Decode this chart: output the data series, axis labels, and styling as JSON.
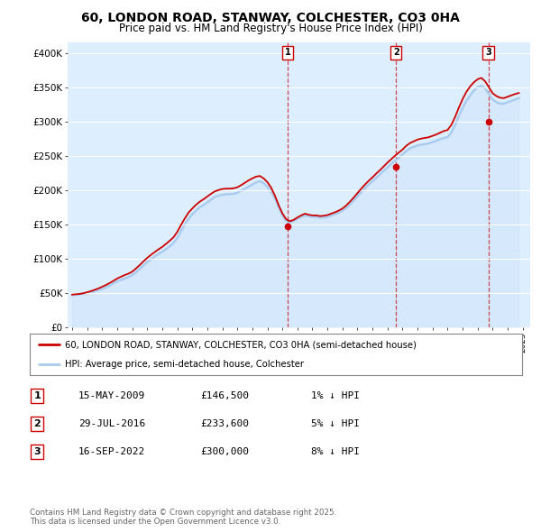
{
  "title": "60, LONDON ROAD, STANWAY, COLCHESTER, CO3 0HA",
  "subtitle": "Price paid vs. HM Land Registry's House Price Index (HPI)",
  "background_color": "#ffffff",
  "plot_background": "#ddeeff",
  "grid_color": "#bbccdd",
  "ylabel_ticks": [
    "£0",
    "£50K",
    "£100K",
    "£150K",
    "£200K",
    "£250K",
    "£300K",
    "£350K",
    "£400K"
  ],
  "ytick_values": [
    0,
    50000,
    100000,
    150000,
    200000,
    250000,
    300000,
    350000,
    400000
  ],
  "ylim": [
    0,
    415000
  ],
  "xlim_start": 1994.7,
  "xlim_end": 2025.5,
  "hpi_color": "#aaccee",
  "price_color": "#cc0000",
  "sale_marker_color": "#cc0000",
  "vline_color": "#cc0000",
  "legend_label_price": "60, LONDON ROAD, STANWAY, COLCHESTER, CO3 0HA (semi-detached house)",
  "legend_label_hpi": "HPI: Average price, semi-detached house, Colchester",
  "sale1_date": 2009.37,
  "sale1_price": 146500,
  "sale1_label": "1",
  "sale2_date": 2016.57,
  "sale2_price": 233600,
  "sale2_label": "2",
  "sale3_date": 2022.71,
  "sale3_price": 300000,
  "sale3_label": "3",
  "table_rows": [
    [
      "1",
      "15-MAY-2009",
      "£146,500",
      "1% ↓ HPI"
    ],
    [
      "2",
      "29-JUL-2016",
      "£233,600",
      "5% ↓ HPI"
    ],
    [
      "3",
      "16-SEP-2022",
      "£300,000",
      "8% ↓ HPI"
    ]
  ],
  "footer_text": "Contains HM Land Registry data © Crown copyright and database right 2025.\nThis data is licensed under the Open Government Licence v3.0.",
  "hpi_data_x": [
    1995.0,
    1995.25,
    1995.5,
    1995.75,
    1996.0,
    1996.25,
    1996.5,
    1996.75,
    1997.0,
    1997.25,
    1997.5,
    1997.75,
    1998.0,
    1998.25,
    1998.5,
    1998.75,
    1999.0,
    1999.25,
    1999.5,
    1999.75,
    2000.0,
    2000.25,
    2000.5,
    2000.75,
    2001.0,
    2001.25,
    2001.5,
    2001.75,
    2002.0,
    2002.25,
    2002.5,
    2002.75,
    2003.0,
    2003.25,
    2003.5,
    2003.75,
    2004.0,
    2004.25,
    2004.5,
    2004.75,
    2005.0,
    2005.25,
    2005.5,
    2005.75,
    2006.0,
    2006.25,
    2006.5,
    2006.75,
    2007.0,
    2007.25,
    2007.5,
    2007.75,
    2008.0,
    2008.25,
    2008.5,
    2008.75,
    2009.0,
    2009.25,
    2009.5,
    2009.75,
    2010.0,
    2010.25,
    2010.5,
    2010.75,
    2011.0,
    2011.25,
    2011.5,
    2011.75,
    2012.0,
    2012.25,
    2012.5,
    2012.75,
    2013.0,
    2013.25,
    2013.5,
    2013.75,
    2014.0,
    2014.25,
    2014.5,
    2014.75,
    2015.0,
    2015.25,
    2015.5,
    2015.75,
    2016.0,
    2016.25,
    2016.5,
    2016.75,
    2017.0,
    2017.25,
    2017.5,
    2017.75,
    2018.0,
    2018.25,
    2018.5,
    2018.75,
    2019.0,
    2019.25,
    2019.5,
    2019.75,
    2020.0,
    2020.25,
    2020.5,
    2020.75,
    2021.0,
    2021.25,
    2021.5,
    2021.75,
    2022.0,
    2022.25,
    2022.5,
    2022.75,
    2023.0,
    2023.25,
    2023.5,
    2023.75,
    2024.0,
    2024.25,
    2024.5,
    2024.75
  ],
  "hpi_data_y": [
    47000,
    47500,
    48000,
    49000,
    50000,
    51000,
    52500,
    54000,
    56000,
    58000,
    61000,
    64000,
    67000,
    69000,
    71000,
    73000,
    76000,
    80000,
    85000,
    90000,
    95000,
    99000,
    103000,
    107000,
    110000,
    114000,
    118000,
    123000,
    130000,
    140000,
    150000,
    158000,
    165000,
    170000,
    175000,
    178000,
    182000,
    186000,
    190000,
    192000,
    193000,
    194000,
    194000,
    194500,
    196000,
    199000,
    202000,
    205000,
    208000,
    211000,
    213000,
    210000,
    205000,
    198000,
    188000,
    175000,
    163000,
    155000,
    153000,
    155000,
    158000,
    161000,
    163000,
    162000,
    161000,
    161000,
    160000,
    160000,
    161000,
    163000,
    165000,
    167000,
    170000,
    174000,
    179000,
    185000,
    191000,
    197000,
    203000,
    208000,
    213000,
    218000,
    223000,
    228000,
    233000,
    238000,
    243000,
    247000,
    252000,
    257000,
    261000,
    263000,
    265000,
    266000,
    267000,
    268000,
    270000,
    272000,
    274000,
    276000,
    277000,
    284000,
    295000,
    308000,
    320000,
    330000,
    338000,
    345000,
    350000,
    352000,
    348000,
    340000,
    332000,
    328000,
    326000,
    326000,
    328000,
    330000,
    332000,
    334000
  ],
  "price_data_x": [
    1995.0,
    1995.25,
    1995.5,
    1995.75,
    1996.0,
    1996.25,
    1996.5,
    1996.75,
    1997.0,
    1997.25,
    1997.5,
    1997.75,
    1998.0,
    1998.25,
    1998.5,
    1998.75,
    1999.0,
    1999.25,
    1999.5,
    1999.75,
    2000.0,
    2000.25,
    2000.5,
    2000.75,
    2001.0,
    2001.25,
    2001.5,
    2001.75,
    2002.0,
    2002.25,
    2002.5,
    2002.75,
    2003.0,
    2003.25,
    2003.5,
    2003.75,
    2004.0,
    2004.25,
    2004.5,
    2004.75,
    2005.0,
    2005.25,
    2005.5,
    2005.75,
    2006.0,
    2006.25,
    2006.5,
    2006.75,
    2007.0,
    2007.25,
    2007.5,
    2007.75,
    2008.0,
    2008.25,
    2008.5,
    2008.75,
    2009.0,
    2009.25,
    2009.5,
    2009.75,
    2010.0,
    2010.25,
    2010.5,
    2010.75,
    2011.0,
    2011.25,
    2011.5,
    2011.75,
    2012.0,
    2012.25,
    2012.5,
    2012.75,
    2013.0,
    2013.25,
    2013.5,
    2013.75,
    2014.0,
    2014.25,
    2014.5,
    2014.75,
    2015.0,
    2015.25,
    2015.5,
    2015.75,
    2016.0,
    2016.25,
    2016.5,
    2016.75,
    2017.0,
    2017.25,
    2017.5,
    2017.75,
    2018.0,
    2018.25,
    2018.5,
    2018.75,
    2019.0,
    2019.25,
    2019.5,
    2019.75,
    2020.0,
    2020.25,
    2020.5,
    2020.75,
    2021.0,
    2021.25,
    2021.5,
    2021.75,
    2022.0,
    2022.25,
    2022.5,
    2022.75,
    2023.0,
    2023.25,
    2023.5,
    2023.75,
    2024.0,
    2024.25,
    2024.5,
    2024.75
  ],
  "price_data_y": [
    47500,
    48000,
    48500,
    49500,
    51000,
    52500,
    54500,
    56500,
    59000,
    61500,
    64500,
    67500,
    71000,
    73500,
    76000,
    78000,
    81000,
    85500,
    90500,
    96000,
    101000,
    105500,
    109500,
    113500,
    117000,
    121500,
    126000,
    131000,
    139000,
    149000,
    158500,
    167000,
    173000,
    178500,
    183000,
    186500,
    190500,
    194500,
    198000,
    200000,
    201500,
    202000,
    202000,
    202500,
    204000,
    207000,
    210500,
    214000,
    217000,
    219500,
    220500,
    217000,
    211500,
    203500,
    192000,
    178000,
    166000,
    157500,
    154500,
    156500,
    160000,
    163000,
    165500,
    164000,
    163000,
    163000,
    162000,
    162500,
    163500,
    165500,
    167500,
    170000,
    173000,
    177500,
    183000,
    189000,
    195500,
    202000,
    208000,
    213500,
    218500,
    224000,
    229000,
    234500,
    240000,
    245000,
    250000,
    254500,
    259000,
    264500,
    268500,
    271000,
    273500,
    275000,
    276000,
    277000,
    279000,
    281000,
    283500,
    286000,
    287500,
    295000,
    306500,
    320000,
    332500,
    343000,
    351000,
    357000,
    361500,
    363500,
    358500,
    350000,
    341000,
    337000,
    334500,
    334000,
    336000,
    338000,
    340000,
    341500
  ]
}
